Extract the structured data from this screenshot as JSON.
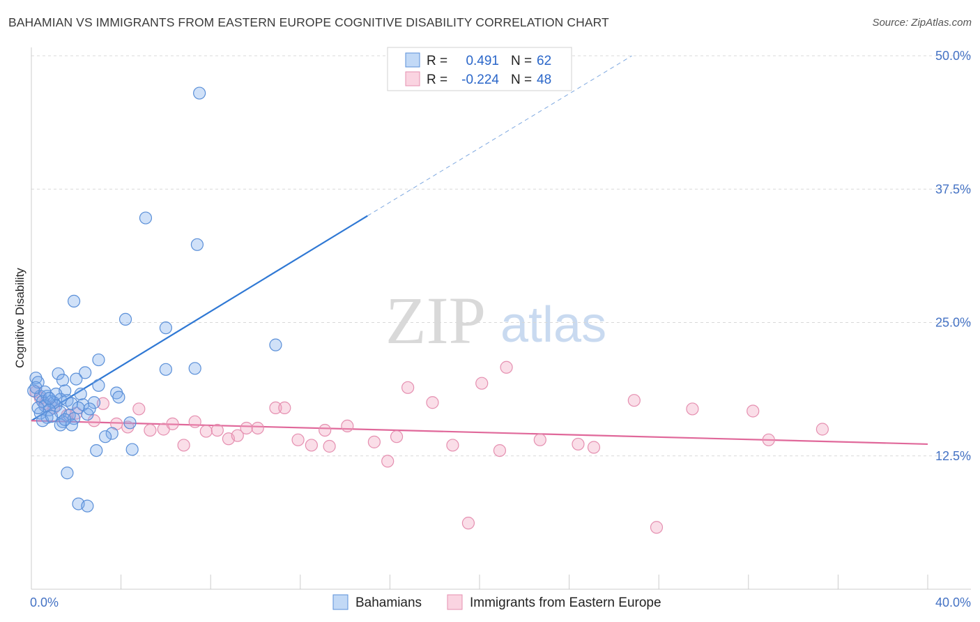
{
  "title": "BAHAMIAN VS IMMIGRANTS FROM EASTERN EUROPE COGNITIVE DISABILITY CORRELATION CHART",
  "source": "Source: ZipAtlas.com",
  "watermark": {
    "zip": "ZIP",
    "atlas": "atlas"
  },
  "colors": {
    "blue": "#2f78d4",
    "blue_fill": "rgba(120,170,235,0.35)",
    "pink": "#e0689a",
    "pink_fill": "rgba(240,160,190,0.35)",
    "tick_text": "#4472c4",
    "grid": "#dcdcdc"
  },
  "legend": {
    "rows": [
      {
        "r_label": "R =",
        "r_value": "0.491",
        "n_label": "N =",
        "n_value": "62"
      },
      {
        "r_label": "R =",
        "r_value": "-0.224",
        "n_label": "N =",
        "n_value": "48"
      }
    ]
  },
  "bottom_legend": [
    "Bahamians",
    "Immigrants from Eastern Europe"
  ],
  "chart_data": {
    "type": "scatter",
    "title": "BAHAMIAN VS IMMIGRANTS FROM EASTERN EUROPE COGNITIVE DISABILITY CORRELATION CHART",
    "xlabel": "",
    "ylabel": "Cognitive Disability",
    "xlim": [
      0,
      40
    ],
    "ylim": [
      0,
      50
    ],
    "x_tick_labels": [
      "0.0%",
      "40.0%"
    ],
    "y_ticks": [
      12.5,
      25.0,
      37.5,
      50.0
    ],
    "y_tick_labels": [
      "12.5%",
      "25.0%",
      "37.5%",
      "50.0%"
    ],
    "grid": true,
    "series": [
      {
        "name": "Bahamians",
        "color": "#2f78d4",
        "points": [
          [
            7.5,
            46.5
          ],
          [
            5.1,
            34.8
          ],
          [
            7.4,
            32.3
          ],
          [
            1.9,
            27.0
          ],
          [
            4.2,
            25.3
          ],
          [
            6.0,
            24.5
          ],
          [
            10.9,
            22.9
          ],
          [
            3.0,
            21.5
          ],
          [
            6.0,
            20.6
          ],
          [
            7.3,
            20.7
          ],
          [
            2.4,
            20.3
          ],
          [
            0.2,
            19.8
          ],
          [
            1.2,
            20.2
          ],
          [
            1.4,
            19.6
          ],
          [
            2.0,
            19.7
          ],
          [
            0.3,
            19.4
          ],
          [
            3.0,
            19.1
          ],
          [
            0.1,
            18.6
          ],
          [
            1.5,
            18.6
          ],
          [
            2.2,
            18.3
          ],
          [
            0.4,
            18.1
          ],
          [
            0.7,
            18.1
          ],
          [
            3.8,
            18.4
          ],
          [
            3.9,
            18.0
          ],
          [
            1.3,
            17.8
          ],
          [
            1.6,
            17.7
          ],
          [
            0.5,
            17.6
          ],
          [
            0.9,
            17.6
          ],
          [
            1.0,
            17.5
          ],
          [
            1.8,
            17.4
          ],
          [
            2.8,
            17.5
          ],
          [
            0.6,
            17.2
          ],
          [
            1.1,
            17.2
          ],
          [
            2.3,
            17.3
          ],
          [
            2.1,
            17.0
          ],
          [
            0.8,
            16.8
          ],
          [
            1.3,
            16.6
          ],
          [
            0.4,
            16.5
          ],
          [
            1.7,
            16.3
          ],
          [
            2.5,
            16.4
          ],
          [
            0.7,
            16.1
          ],
          [
            1.9,
            16.0
          ],
          [
            0.5,
            15.8
          ],
          [
            1.4,
            15.7
          ],
          [
            4.4,
            15.6
          ],
          [
            1.3,
            15.4
          ],
          [
            1.8,
            15.4
          ],
          [
            3.6,
            14.6
          ],
          [
            3.3,
            14.3
          ],
          [
            2.9,
            13.0
          ],
          [
            4.5,
            13.1
          ],
          [
            1.6,
            10.9
          ],
          [
            2.1,
            8.0
          ],
          [
            2.5,
            7.8
          ],
          [
            0.2,
            18.9
          ],
          [
            0.9,
            16.2
          ],
          [
            1.1,
            18.3
          ],
          [
            0.3,
            17.0
          ],
          [
            2.6,
            16.9
          ],
          [
            1.5,
            15.9
          ],
          [
            0.6,
            18.5
          ],
          [
            0.8,
            17.9
          ]
        ],
        "trendline": {
          "x": [
            0,
            15.0
          ],
          "y": [
            15.8,
            35.0
          ],
          "extended_to": [
            26.8,
            50.0
          ]
        }
      },
      {
        "name": "Immigrants from Eastern Europe",
        "color": "#e0689a",
        "points": [
          [
            0.2,
            18.5
          ],
          [
            0.6,
            17.4
          ],
          [
            1.0,
            17.0
          ],
          [
            1.6,
            16.3
          ],
          [
            3.2,
            17.4
          ],
          [
            4.8,
            16.9
          ],
          [
            2.8,
            15.8
          ],
          [
            3.8,
            15.5
          ],
          [
            5.3,
            14.9
          ],
          [
            5.9,
            15.0
          ],
          [
            6.3,
            15.5
          ],
          [
            6.8,
            13.5
          ],
          [
            7.3,
            15.7
          ],
          [
            7.8,
            14.8
          ],
          [
            8.3,
            14.9
          ],
          [
            8.8,
            14.1
          ],
          [
            9.2,
            14.4
          ],
          [
            9.6,
            15.1
          ],
          [
            10.1,
            15.1
          ],
          [
            10.9,
            17.0
          ],
          [
            11.3,
            17.0
          ],
          [
            11.9,
            14.0
          ],
          [
            12.5,
            13.5
          ],
          [
            13.1,
            14.9
          ],
          [
            13.3,
            13.4
          ],
          [
            14.1,
            15.3
          ],
          [
            15.3,
            13.8
          ],
          [
            15.9,
            12.0
          ],
          [
            16.3,
            14.3
          ],
          [
            16.8,
            18.9
          ],
          [
            17.9,
            17.5
          ],
          [
            18.8,
            13.5
          ],
          [
            19.5,
            6.2
          ],
          [
            20.1,
            19.3
          ],
          [
            20.9,
            13.0
          ],
          [
            21.2,
            20.8
          ],
          [
            22.7,
            14.0
          ],
          [
            24.4,
            13.6
          ],
          [
            25.1,
            13.3
          ],
          [
            26.9,
            17.7
          ],
          [
            27.9,
            5.8
          ],
          [
            29.5,
            16.9
          ],
          [
            32.2,
            16.7
          ],
          [
            32.9,
            14.0
          ],
          [
            35.3,
            15.0
          ],
          [
            2.0,
            16.5
          ],
          [
            0.4,
            17.9
          ],
          [
            4.3,
            15.2
          ]
        ],
        "trendline": {
          "x": [
            0,
            40
          ],
          "y": [
            15.8,
            13.6
          ]
        }
      }
    ]
  }
}
